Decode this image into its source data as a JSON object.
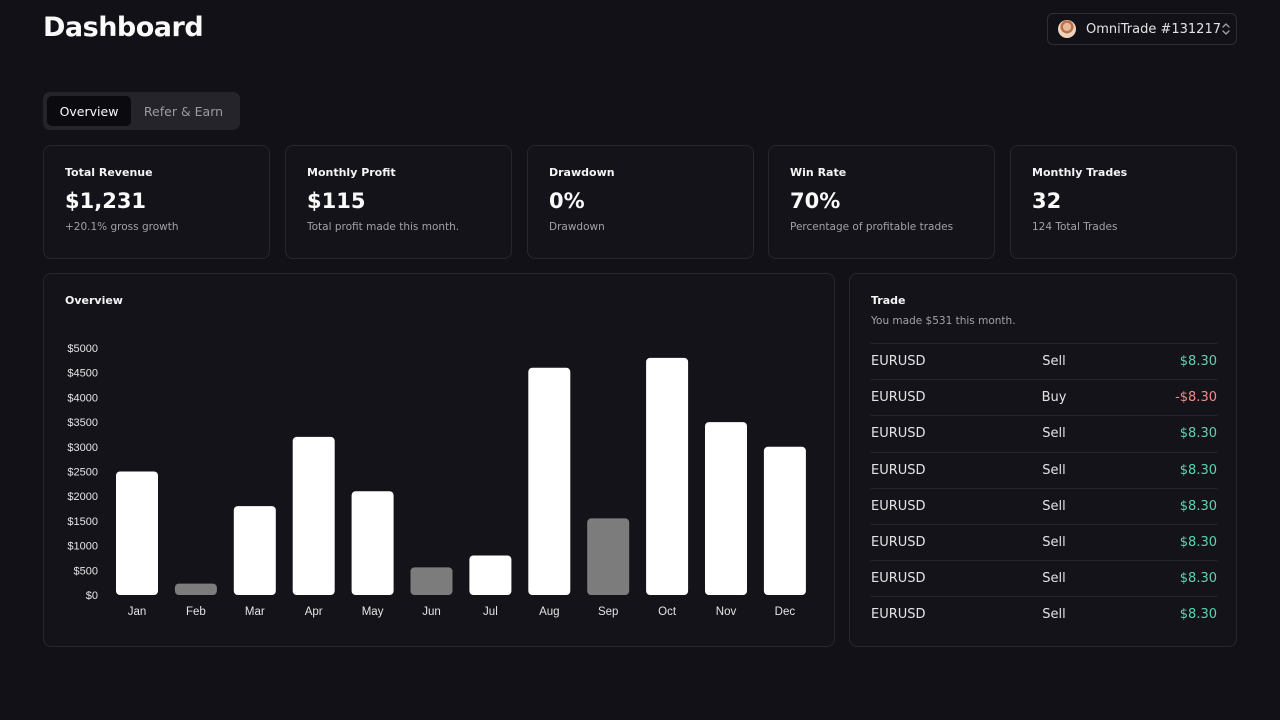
{
  "header": {
    "title": "Dashboard",
    "account_label": "OmniTrade #131217"
  },
  "tabs": [
    {
      "label": "Overview",
      "active": true
    },
    {
      "label": "Refer & Earn",
      "active": false
    }
  ],
  "stats": [
    {
      "title": "Total Revenue",
      "value": "$1,231",
      "subtitle": "+20.1% gross growth"
    },
    {
      "title": "Monthly Profit",
      "value": "$115",
      "subtitle": "Total profit made this month."
    },
    {
      "title": "Drawdown",
      "value": "0%",
      "subtitle": "Drawdown"
    },
    {
      "title": "Win Rate",
      "value": "70%",
      "subtitle": "Percentage of profitable trades"
    },
    {
      "title": "Monthly Trades",
      "value": "32",
      "subtitle": "124 Total Trades"
    }
  ],
  "overview": {
    "title": "Overview"
  },
  "chart_data": {
    "type": "bar",
    "title": "",
    "xlabel": "",
    "ylabel": "",
    "categories": [
      "Jan",
      "Feb",
      "Mar",
      "Apr",
      "May",
      "Jun",
      "Jul",
      "Aug",
      "Sep",
      "Oct",
      "Nov",
      "Dec"
    ],
    "values": [
      2500,
      230,
      1800,
      3200,
      2100,
      560,
      800,
      4600,
      1550,
      4800,
      3500,
      3000
    ],
    "highlight": [
      true,
      false,
      true,
      true,
      true,
      false,
      true,
      true,
      false,
      true,
      true,
      true
    ],
    "ylim": [
      0,
      5000
    ],
    "yticks": [
      "$0",
      "$500",
      "$1000",
      "$1500",
      "$2000",
      "$2500",
      "$3000",
      "$3500",
      "$4000",
      "$4500",
      "$5000"
    ],
    "grid": false,
    "colors": {
      "primary": "#ffffff",
      "muted": "#7c7c7c"
    }
  },
  "trade": {
    "title": "Trade",
    "subtitle": "You made $531 this month.",
    "rows": [
      {
        "pair": "EURUSD",
        "side": "Sell",
        "amount": "$8.30",
        "positive": true
      },
      {
        "pair": "EURUSD",
        "side": "Buy",
        "amount": "-$8.30",
        "positive": false
      },
      {
        "pair": "EURUSD",
        "side": "Sell",
        "amount": "$8.30",
        "positive": true
      },
      {
        "pair": "EURUSD",
        "side": "Sell",
        "amount": "$8.30",
        "positive": true
      },
      {
        "pair": "EURUSD",
        "side": "Sell",
        "amount": "$8.30",
        "positive": true
      },
      {
        "pair": "EURUSD",
        "side": "Sell",
        "amount": "$8.30",
        "positive": true
      },
      {
        "pair": "EURUSD",
        "side": "Sell",
        "amount": "$8.30",
        "positive": true
      },
      {
        "pair": "EURUSD",
        "side": "Sell",
        "amount": "$8.30",
        "positive": true
      }
    ]
  },
  "colors": {
    "background": "#121117",
    "card_border": "#27262d",
    "positive": "#5fd3b3",
    "negative": "#f08d86"
  },
  "icons": {
    "account_select": "chevron-up-down-icon"
  }
}
